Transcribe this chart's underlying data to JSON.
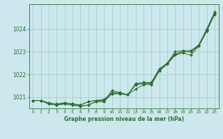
{
  "title": "Graphe pression niveau de la mer (hPa)",
  "bg_color": "#cce8ee",
  "grid_color": "#99ccbb",
  "line_color": "#2d6e2d",
  "xlim": [
    -0.5,
    23.5
  ],
  "ylim": [
    1020.5,
    1025.1
  ],
  "yticks": [
    1021,
    1022,
    1023,
    1024
  ],
  "xticks": [
    0,
    1,
    2,
    3,
    4,
    5,
    6,
    7,
    8,
    9,
    10,
    11,
    12,
    13,
    14,
    15,
    16,
    17,
    18,
    19,
    20,
    21,
    22,
    23
  ],
  "series": [
    [
      1020.85,
      1020.85,
      1020.7,
      1020.65,
      1020.7,
      1020.65,
      1020.6,
      1020.65,
      1020.8,
      1020.8,
      1021.15,
      1021.15,
      1021.1,
      1021.55,
      1021.6,
      1021.6,
      1022.2,
      1022.5,
      1022.9,
      1023.0,
      1023.0,
      1023.3,
      1024.0,
      1024.75
    ],
    [
      1020.85,
      1020.85,
      1020.7,
      1020.65,
      1020.7,
      1020.65,
      1020.6,
      1020.65,
      1020.8,
      1020.8,
      1021.3,
      1021.2,
      1021.1,
      1021.35,
      1021.55,
      1021.55,
      1022.15,
      1022.45,
      1022.85,
      1022.95,
      1022.85,
      1023.25,
      1023.95,
      1024.7
    ],
    [
      1020.85,
      1020.85,
      1020.7,
      1020.65,
      1020.75,
      1020.7,
      1020.65,
      1020.8,
      1020.85,
      1020.85,
      1021.15,
      1021.15,
      1021.1,
      1021.55,
      1021.6,
      1021.6,
      1022.2,
      1022.5,
      1022.9,
      1023.0,
      1023.0,
      1023.25,
      1023.9,
      1024.65
    ],
    [
      1020.85,
      1020.85,
      1020.75,
      1020.7,
      1020.75,
      1020.7,
      1020.65,
      1020.8,
      1020.85,
      1020.9,
      1021.2,
      1021.2,
      1021.1,
      1021.6,
      1021.65,
      1021.65,
      1022.25,
      1022.5,
      1023.0,
      1023.05,
      1023.05,
      1023.3,
      1023.95,
      1024.7
    ]
  ]
}
